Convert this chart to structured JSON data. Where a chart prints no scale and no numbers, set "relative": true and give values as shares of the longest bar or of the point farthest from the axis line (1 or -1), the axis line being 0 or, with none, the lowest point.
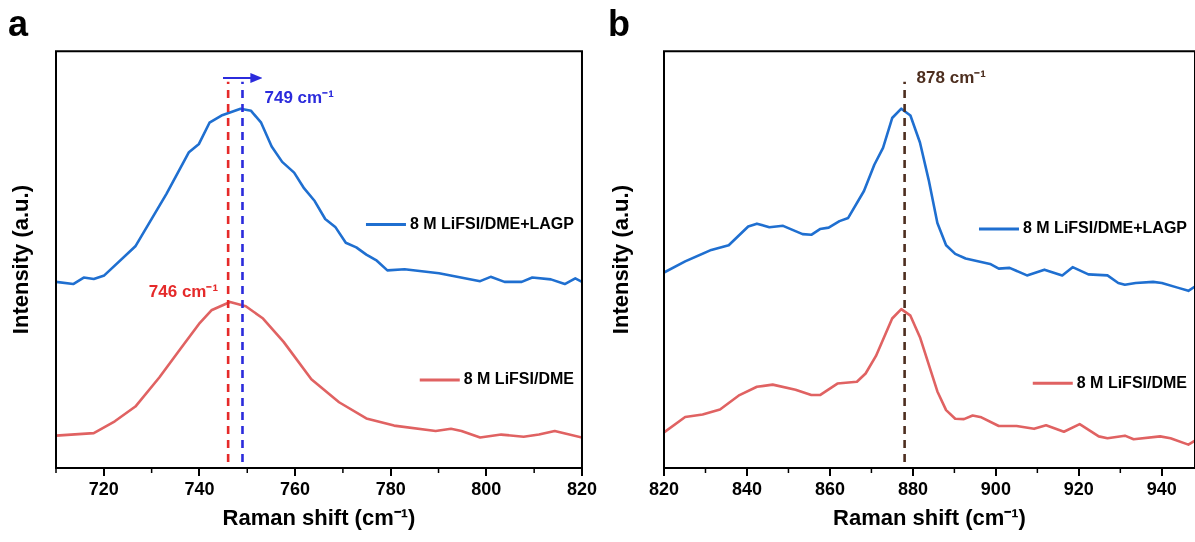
{
  "chart_data": [
    {
      "type": "line",
      "title": "a",
      "xlabel": "Raman shift (cm⁻¹)",
      "ylabel": "Intensity (a.u.)",
      "relative": true,
      "xlim": [
        710,
        820
      ],
      "xticks": [
        720,
        740,
        760,
        780,
        800,
        820
      ],
      "tick_labels": "x",
      "grid": false,
      "legend": "right",
      "marker": "none",
      "line_style": "solid",
      "series": [
        {
          "name": "8 M LiFSI/DME+LAGP",
          "color": "#1f6fd0",
          "x": [
            710,
            713.6,
            715.8,
            717.9,
            720.1,
            726.6,
            733.1,
            737.8,
            739.9,
            742.1,
            744.6,
            748.6,
            750.8,
            752.9,
            755.1,
            757.3,
            759.8,
            761.9,
            764.1,
            766.3,
            768.4,
            770.6,
            772.8,
            774.9,
            777.1,
            779.3,
            782.9,
            790.1,
            798.7,
            800.9,
            803.8,
            807.4,
            809.6,
            813.5,
            816.4,
            818.6,
            820
          ],
          "values": [
            0.518,
            0.512,
            0.53,
            0.526,
            0.536,
            0.617,
            0.763,
            0.879,
            0.902,
            0.961,
            0.981,
            1,
            0.994,
            0.961,
            0.895,
            0.852,
            0.822,
            0.778,
            0.743,
            0.693,
            0.671,
            0.627,
            0.614,
            0.594,
            0.577,
            0.55,
            0.553,
            0.542,
            0.52,
            0.532,
            0.518,
            0.518,
            0.53,
            0.525,
            0.512,
            0.528,
            0.518
          ]
        },
        {
          "name": "8 M LiFSI/DME",
          "color": "#e06262",
          "x": [
            710,
            717.9,
            722.3,
            726.6,
            731.6,
            736,
            739.9,
            742.5,
            746.4,
            749.7,
            753.3,
            757.6,
            763.4,
            769.2,
            774.9,
            780.7,
            789.4,
            792.6,
            794.8,
            798.7,
            803.1,
            807.8,
            811,
            814.3,
            820
          ],
          "values": [
            0.09,
            0.097,
            0.13,
            0.171,
            0.252,
            0.331,
            0.401,
            0.439,
            0.462,
            0.45,
            0.416,
            0.351,
            0.247,
            0.183,
            0.138,
            0.118,
            0.103,
            0.109,
            0.103,
            0.085,
            0.093,
            0.087,
            0.093,
            0.103,
            0.085
          ]
        }
      ],
      "ref_lines": [
        {
          "axis": "x",
          "value": 746,
          "color": "#e52a2a",
          "line_style": "dashed",
          "label": "746 cm⁻¹"
        },
        {
          "axis": "x",
          "value": 749,
          "color": "#2b2bdc",
          "line_style": "dashed",
          "label": "749 cm⁻¹"
        }
      ]
    },
    {
      "type": "line",
      "title": "b",
      "xlabel": "Raman shift (cm⁻¹)",
      "ylabel": "Intensity (a.u.)",
      "relative": true,
      "xlim": [
        820,
        948
      ],
      "xticks": [
        820,
        840,
        860,
        880,
        900,
        920,
        940
      ],
      "tick_labels": "x",
      "grid": false,
      "legend": "right",
      "marker": "none",
      "line_style": "solid",
      "series": [
        {
          "name": "8 M LiFSI/DME+LAGP",
          "color": "#1f6fd0",
          "x": [
            820,
            825.1,
            831.4,
            835.6,
            840.3,
            842.4,
            845.4,
            848.7,
            853.4,
            855.5,
            857.6,
            859.7,
            862.3,
            864.4,
            868.2,
            870.7,
            872.8,
            875,
            877.2,
            879.4,
            881.7,
            883.8,
            885.9,
            888,
            890.2,
            892.7,
            898.6,
            900.7,
            903.3,
            907.5,
            911.7,
            916,
            918.5,
            922.3,
            926.9,
            929.5,
            931.1,
            933.7,
            937.9,
            940,
            943.8,
            946.4,
            948
          ],
          "values": [
            0.544,
            0.575,
            0.607,
            0.62,
            0.672,
            0.68,
            0.67,
            0.674,
            0.651,
            0.649,
            0.665,
            0.669,
            0.687,
            0.696,
            0.771,
            0.844,
            0.891,
            0.974,
            1,
            0.981,
            0.906,
            0.802,
            0.682,
            0.62,
            0.596,
            0.583,
            0.568,
            0.555,
            0.557,
            0.536,
            0.552,
            0.536,
            0.559,
            0.539,
            0.536,
            0.515,
            0.51,
            0.515,
            0.518,
            0.515,
            0.502,
            0.493,
            0.505
          ]
        },
        {
          "name": "8 M LiFSI/DME",
          "color": "#e06262",
          "x": [
            820,
            825.1,
            829.3,
            833.5,
            838.2,
            842.4,
            846.2,
            851.7,
            855.5,
            857.6,
            861.8,
            866.5,
            868.6,
            871.1,
            875,
            877.2,
            879.4,
            881.7,
            885.9,
            888,
            890.2,
            892.3,
            894.4,
            896.5,
            900.7,
            905,
            909.2,
            912.1,
            916.4,
            920.2,
            924.8,
            926.9,
            931.1,
            933.2,
            939.6,
            942.1,
            946.4,
            948
          ],
          "values": [
            0.099,
            0.142,
            0.149,
            0.163,
            0.203,
            0.226,
            0.232,
            0.218,
            0.203,
            0.203,
            0.235,
            0.24,
            0.263,
            0.312,
            0.416,
            0.442,
            0.424,
            0.364,
            0.213,
            0.161,
            0.137,
            0.136,
            0.146,
            0.141,
            0.117,
            0.117,
            0.109,
            0.119,
            0.101,
            0.122,
            0.088,
            0.083,
            0.09,
            0.08,
            0.088,
            0.083,
            0.065,
            0.076
          ]
        }
      ],
      "ref_lines": [
        {
          "axis": "x",
          "value": 878,
          "color": "#4d2e1f",
          "line_style": "dashed",
          "label": "878 cm⁻¹"
        }
      ]
    }
  ]
}
